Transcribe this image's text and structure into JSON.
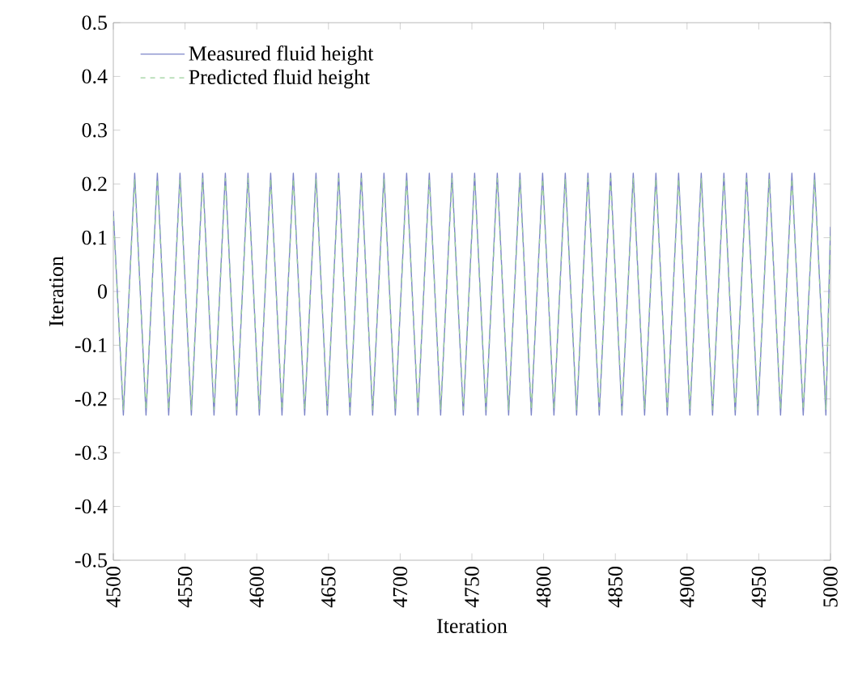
{
  "chart_data": {
    "type": "line",
    "xlabel": "Iteration",
    "ylabel": "Iteration",
    "xlim": [
      4500,
      5000
    ],
    "ylim": [
      -0.5,
      0.5
    ],
    "xticks": [
      4500,
      4550,
      4600,
      4650,
      4700,
      4750,
      4800,
      4850,
      4900,
      4950,
      5000
    ],
    "yticks": [
      -0.5,
      -0.4,
      -0.3,
      -0.2,
      -0.1,
      0,
      0.1,
      0.2,
      0.3,
      0.4,
      0.5
    ],
    "legend": "top left",
    "x": [
      4500,
      4507.0,
      4514.9,
      4522.8,
      4530.7,
      4538.6,
      4546.5,
      4554.4,
      4562.3,
      4570.2,
      4578.1,
      4586.0,
      4593.9,
      4601.8,
      4609.7,
      4617.6,
      4625.5,
      4633.4,
      4641.3,
      4649.2,
      4657.1,
      4665.0,
      4672.9,
      4680.8,
      4688.7,
      4696.6,
      4704.5,
      4712.4,
      4720.3,
      4728.2,
      4736.1,
      4744.0,
      4751.9,
      4759.8,
      4767.7,
      4775.6,
      4783.5,
      4791.4,
      4799.3,
      4807.2,
      4815.1,
      4823.0,
      4830.9,
      4838.8,
      4846.7,
      4854.6,
      4862.5,
      4870.4,
      4878.3,
      4886.2,
      4894.1,
      4902.0,
      4909.9,
      4917.8,
      4925.7,
      4933.6,
      4941.5,
      4949.4,
      4957.3,
      4965.2,
      4973.1,
      4981.0,
      4988.9,
      4996.8,
      5000
    ],
    "series": [
      {
        "name": "Measured fluid height",
        "color": "#7c84c8",
        "line_style": "solid",
        "values": [
          0.15,
          -0.23,
          0.22,
          -0.23,
          0.22,
          -0.23,
          0.22,
          -0.23,
          0.22,
          -0.23,
          0.22,
          -0.23,
          0.22,
          -0.23,
          0.22,
          -0.23,
          0.22,
          -0.23,
          0.22,
          -0.23,
          0.22,
          -0.23,
          0.22,
          -0.23,
          0.22,
          -0.23,
          0.22,
          -0.23,
          0.22,
          -0.23,
          0.22,
          -0.23,
          0.22,
          -0.23,
          0.22,
          -0.23,
          0.22,
          -0.23,
          0.22,
          -0.23,
          0.22,
          -0.23,
          0.22,
          -0.23,
          0.22,
          -0.23,
          0.22,
          -0.23,
          0.22,
          -0.23,
          0.22,
          -0.23,
          0.22,
          -0.23,
          0.22,
          -0.23,
          0.22,
          -0.23,
          0.22,
          -0.23,
          0.22,
          -0.23,
          0.22,
          -0.23,
          0.12
        ]
      },
      {
        "name": "Predicted fluid height",
        "color": "#9acf9a",
        "line_style": "dashed",
        "values": [
          0.14,
          -0.22,
          0.21,
          -0.22,
          0.21,
          -0.22,
          0.21,
          -0.22,
          0.21,
          -0.22,
          0.21,
          -0.22,
          0.21,
          -0.22,
          0.21,
          -0.22,
          0.21,
          -0.22,
          0.21,
          -0.22,
          0.21,
          -0.22,
          0.21,
          -0.22,
          0.21,
          -0.22,
          0.21,
          -0.22,
          0.21,
          -0.22,
          0.21,
          -0.22,
          0.21,
          -0.22,
          0.21,
          -0.22,
          0.21,
          -0.22,
          0.21,
          -0.22,
          0.21,
          -0.22,
          0.21,
          -0.22,
          0.21,
          -0.22,
          0.21,
          -0.22,
          0.21,
          -0.22,
          0.21,
          -0.22,
          0.21,
          -0.22,
          0.21,
          -0.22,
          0.21,
          -0.22,
          0.21,
          -0.22,
          0.21,
          -0.22,
          0.21,
          -0.22,
          0.11
        ]
      }
    ]
  }
}
